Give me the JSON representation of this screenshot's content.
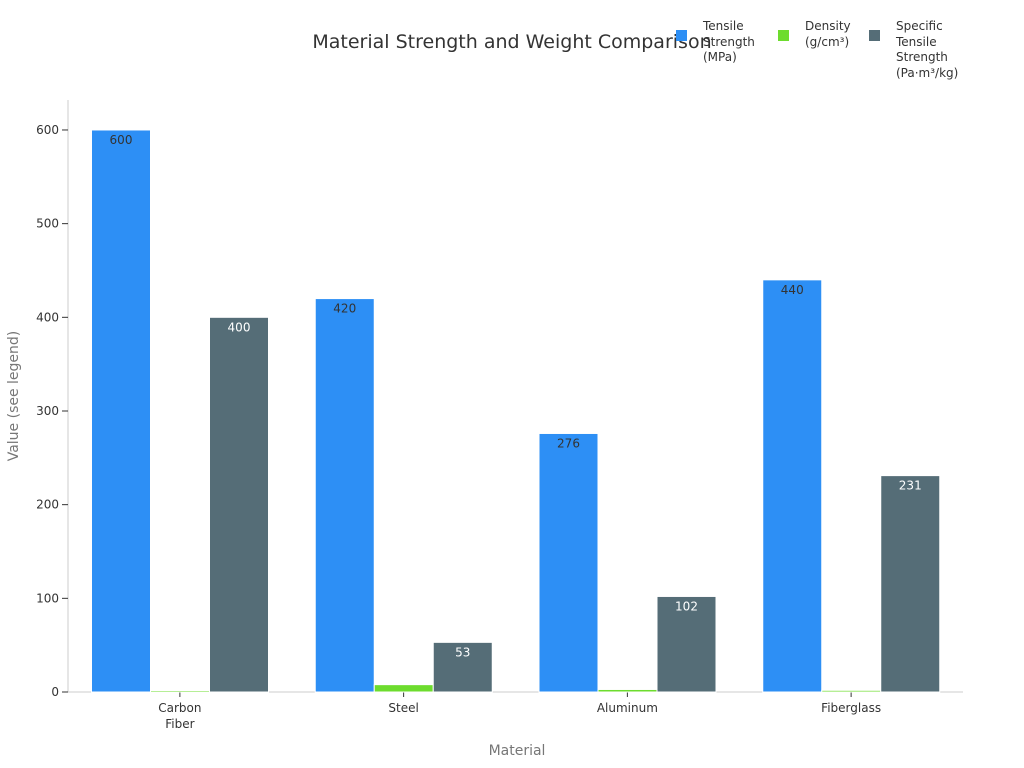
{
  "chart_data": {
    "type": "bar",
    "title": "Material Strength and Weight Comparison",
    "xlabel": "Material",
    "ylabel": "Value (see legend)",
    "ylim": [
      0,
      632
    ],
    "yticks": [
      0,
      100,
      200,
      300,
      400,
      500,
      600
    ],
    "grid": false,
    "legend_position": "top-right",
    "categories": [
      "Carbon Fiber",
      "Steel",
      "Aluminum",
      "Fiberglass"
    ],
    "series": [
      {
        "name": "Tensile Strength (MPa)",
        "color": "#2d8ff5",
        "values": [
          600,
          420,
          276,
          440
        ],
        "labels": [
          "600",
          "420",
          "276",
          "440"
        ],
        "label_color": "#333333"
      },
      {
        "name": "Density (g/cm³)",
        "color": "#6ddc2e",
        "values": [
          1.6,
          7.85,
          2.7,
          1.8
        ],
        "labels": [
          "",
          "",
          "",
          ""
        ],
        "label_color": "#333333"
      },
      {
        "name": "Specific Tensile Strength (Pa·m³/kg)",
        "color": "#556d77",
        "values": [
          400,
          53,
          102,
          231
        ],
        "labels": [
          "400",
          "53",
          "102",
          "231"
        ],
        "label_color": "#ffffff"
      }
    ]
  },
  "legend": {
    "items": [
      {
        "label": "Tensile\nStrength\n(MPa)"
      },
      {
        "label": "Density\n(g/cm³)"
      },
      {
        "label": "Specific\nTensile\nStrength\n(Pa·m³/kg)"
      }
    ]
  },
  "axis": {
    "category_labels": [
      "Carbon\nFiber",
      "Steel",
      "Aluminum",
      "Fiberglass"
    ]
  }
}
